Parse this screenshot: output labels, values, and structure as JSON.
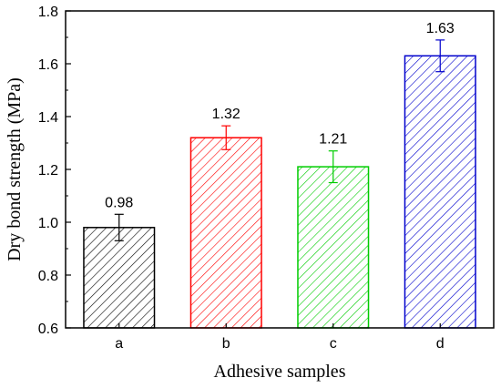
{
  "chart_data": {
    "type": "bar",
    "categories": [
      "a",
      "b",
      "c",
      "d"
    ],
    "values": [
      0.98,
      1.32,
      1.21,
      1.63
    ],
    "errors": [
      0.05,
      0.045,
      0.06,
      0.06
    ],
    "data_labels": [
      "0.98",
      "1.32",
      "1.21",
      "1.63"
    ],
    "colors": [
      "#000000",
      "#ff0000",
      "#00cc00",
      "#0000cc"
    ],
    "fill_pattern": "diagonal-hatch",
    "title": "",
    "xlabel": "Adhesive samples",
    "ylabel": "Dry bond strength (MPa)",
    "ylim": [
      0.6,
      1.8
    ],
    "yticks": [
      0.6,
      0.8,
      1.0,
      1.2,
      1.4,
      1.6,
      1.8
    ],
    "ytick_labels": [
      "0.6",
      "0.8",
      "1.0",
      "1.2",
      "1.4",
      "1.6",
      "1.8"
    ],
    "grid": false,
    "legend": "none"
  }
}
